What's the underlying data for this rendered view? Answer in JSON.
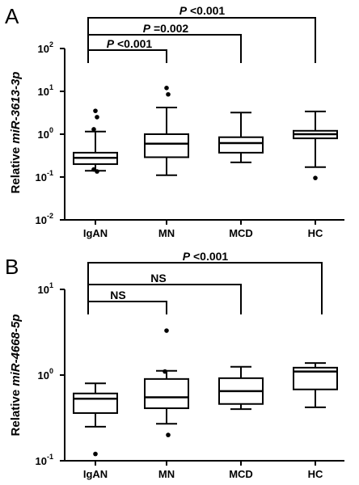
{
  "chart_data": [
    {
      "type": "box",
      "panel": "A",
      "ylabel_prefix": "Relative ",
      "ylabel_gene": "miR-3613-3p",
      "yscale": "log",
      "ylim": [
        0.01,
        100
      ],
      "ytick_exponents": [
        "2",
        "1",
        "0",
        "-1",
        "-2"
      ],
      "categories": [
        "IgAN",
        "MN",
        "MCD",
        "HC"
      ],
      "boxes": [
        {
          "whisker_low": 0.14,
          "q1": 0.2,
          "median": 0.28,
          "q3": 0.37,
          "whisker_high": 1.15,
          "outliers": [
            3.5,
            2.5,
            1.3,
            0.135,
            0.15
          ]
        },
        {
          "whisker_low": 0.11,
          "q1": 0.29,
          "median": 0.6,
          "q3": 1.0,
          "whisker_high": 4.2,
          "outliers": [
            12,
            8.5
          ]
        },
        {
          "whisker_low": 0.22,
          "q1": 0.37,
          "median": 0.62,
          "q3": 0.85,
          "whisker_high": 3.2,
          "outliers": []
        },
        {
          "whisker_low": 0.17,
          "q1": 0.8,
          "median": 1.0,
          "q3": 1.2,
          "whisker_high": 3.4,
          "outliers": [
            0.095
          ]
        }
      ],
      "comparisons": [
        {
          "from": "IgAN",
          "to": "MN",
          "label_p": "P",
          "label_rest": " <0.001"
        },
        {
          "from": "IgAN",
          "to": "MCD",
          "label_p": "P",
          "label_rest": " =0.002"
        },
        {
          "from": "IgAN",
          "to": "HC",
          "label_p": "P",
          "label_rest": " <0.001"
        }
      ]
    },
    {
      "type": "box",
      "panel": "B",
      "ylabel_prefix": "Relative ",
      "ylabel_gene": "miR-4668-5p",
      "yscale": "log",
      "ylim": [
        0.1,
        10
      ],
      "ytick_exponents": [
        "1",
        "0",
        "-1"
      ],
      "categories": [
        "IgAN",
        "MN",
        "MCD",
        "HC"
      ],
      "boxes": [
        {
          "whisker_low": 0.25,
          "q1": 0.36,
          "median": 0.53,
          "q3": 0.61,
          "whisker_high": 0.8,
          "outliers": [
            0.12
          ]
        },
        {
          "whisker_low": 0.27,
          "q1": 0.41,
          "median": 0.55,
          "q3": 0.9,
          "whisker_high": 1.12,
          "outliers": [
            3.3,
            0.2,
            1.1
          ]
        },
        {
          "whisker_low": 0.4,
          "q1": 0.46,
          "median": 0.65,
          "q3": 0.92,
          "whisker_high": 1.25,
          "outliers": []
        },
        {
          "whisker_low": 0.42,
          "q1": 0.68,
          "median": 1.1,
          "q3": 1.22,
          "whisker_high": 1.38,
          "outliers": []
        }
      ],
      "comparisons": [
        {
          "from": "IgAN",
          "to": "MN",
          "label_p": "",
          "label_rest": "NS"
        },
        {
          "from": "IgAN",
          "to": "MCD",
          "label_p": "",
          "label_rest": "NS"
        },
        {
          "from": "IgAN",
          "to": "HC",
          "label_p": "P",
          "label_rest": " <0.001"
        }
      ]
    }
  ]
}
